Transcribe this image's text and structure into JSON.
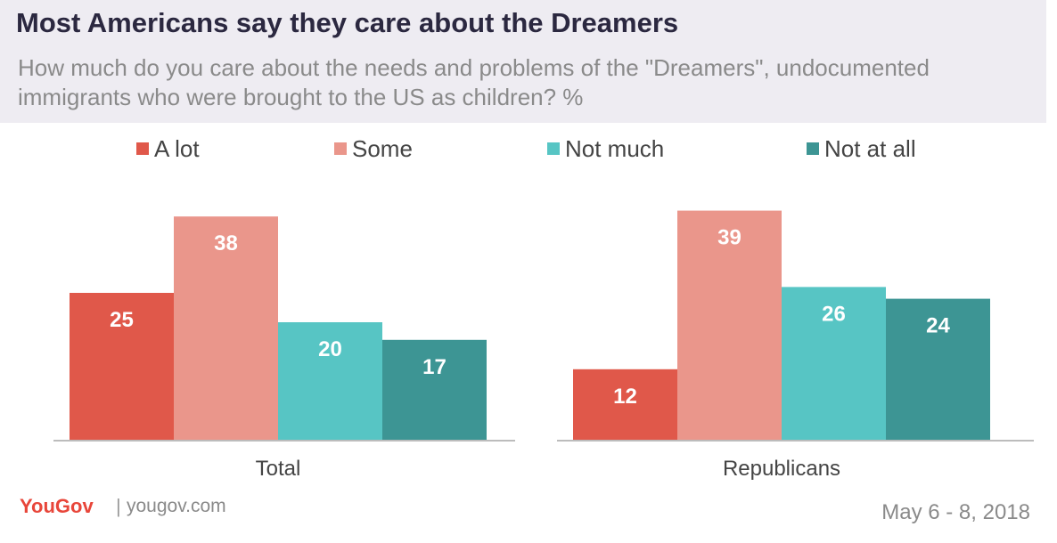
{
  "title": "Most Americans say they care about the Dreamers",
  "subtitle": "How much do you care about the needs and problems of the \"Dreamers\", undocumented immigrants who were brought to the US as children? %",
  "footer": {
    "brand": "YouGov",
    "separator": "|",
    "url": "yougov.com",
    "date": "May 6 - 8, 2018"
  },
  "chart_data": {
    "type": "bar",
    "categories": [
      "Total",
      "Republicans"
    ],
    "series": [
      {
        "name": "A lot",
        "color": "#e0584a",
        "values": [
          25,
          12
        ]
      },
      {
        "name": "Some",
        "color": "#ea968b",
        "values": [
          38,
          39
        ]
      },
      {
        "name": "Not much",
        "color": "#57c5c4",
        "values": [
          20,
          26
        ]
      },
      {
        "name": "Not at all",
        "color": "#3d9594",
        "values": [
          17,
          24
        ]
      }
    ],
    "ylim": [
      0,
      40
    ],
    "grid": false,
    "legend_position": "top"
  }
}
